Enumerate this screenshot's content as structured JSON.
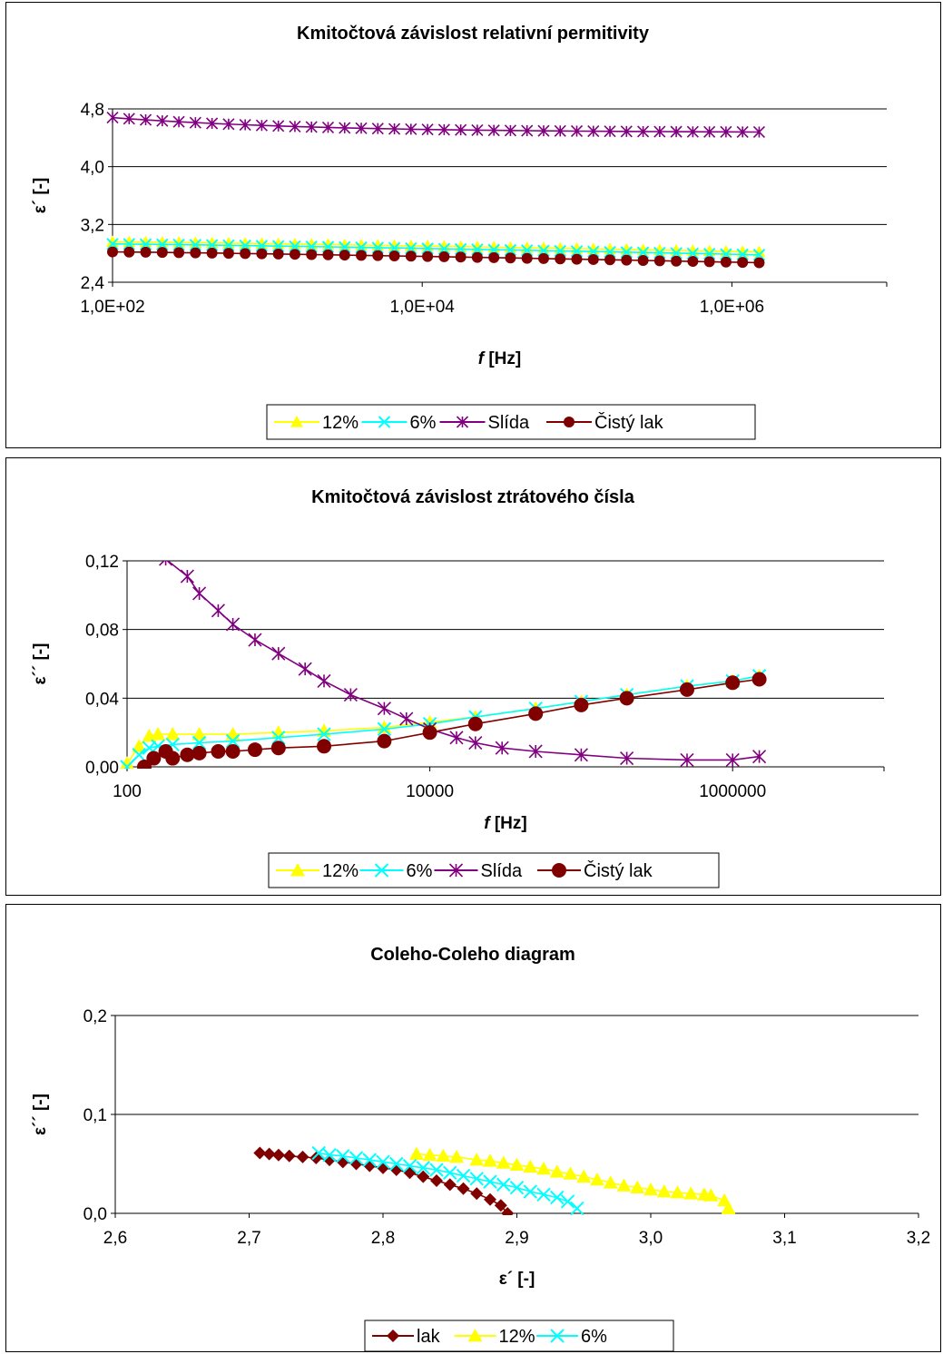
{
  "chart_data": [
    {
      "type": "line",
      "title": "Kmitočtová závislost relativní permitivity",
      "xlabel_italic": "f",
      "xlabel_rest": " [Hz]",
      "ylabel": "ε´ [-]",
      "xscale": "log",
      "xlim": [
        100,
        10000000
      ],
      "ylim": [
        2.4,
        4.8
      ],
      "yticks": [
        2.4,
        3.2,
        4.0,
        4.8
      ],
      "ytick_labels": [
        "2,4",
        "3,2",
        "4,0",
        "4,8"
      ],
      "xticks": [
        100,
        10000,
        1000000
      ],
      "xtick_labels": [
        "1,0E+02",
        "1,0E+04",
        "1,0E+06"
      ],
      "grid": "horizontal",
      "legend_position": "bottom",
      "x": {
        "start": 100,
        "end": 1500000,
        "n": 40
      },
      "series": [
        {
          "name": "12%",
          "color": "#ffff00",
          "marker": "triangle",
          "y_start": 2.96,
          "y_end": 2.82
        },
        {
          "name": "6%",
          "color": "#00ffff",
          "marker": "x",
          "y_start": 2.93,
          "y_end": 2.78
        },
        {
          "name": "Slída",
          "color": "#800080",
          "marker": "star",
          "y_start": 4.68,
          "y_end": 4.48,
          "curve": "decay"
        },
        {
          "name": "Čistý lak",
          "color": "#800000",
          "marker": "circle",
          "y_start": 2.82,
          "y_end": 2.67
        }
      ]
    },
    {
      "type": "line",
      "title": "Kmitočtová závislost ztrátového čísla",
      "xlabel_italic": "f",
      "xlabel_rest": " [Hz]",
      "ylabel": "ε´´ [-]",
      "xscale": "log",
      "xlim": [
        100,
        10000000
      ],
      "ylim": [
        0,
        0.12
      ],
      "yticks": [
        0,
        0.04,
        0.08,
        0.12
      ],
      "ytick_labels": [
        "0,00",
        "0,04",
        "0,08",
        "0,12"
      ],
      "xticks": [
        100,
        10000,
        1000000
      ],
      "xtick_labels": [
        "100",
        "10000",
        "1000000"
      ],
      "grid": "horizontal",
      "legend_position": "bottom",
      "series": [
        {
          "name": "12%",
          "color": "#ffff00",
          "marker": "triangle",
          "points": [
            [
              100,
              0.002
            ],
            [
              120,
              0.012
            ],
            [
              140,
              0.018
            ],
            [
              160,
              0.019
            ],
            [
              200,
              0.019
            ],
            [
              300,
              0.019
            ],
            [
              500,
              0.019
            ],
            [
              1000,
              0.02
            ],
            [
              2000,
              0.021
            ],
            [
              5000,
              0.023
            ],
            [
              10000,
              0.026
            ],
            [
              20000,
              0.029
            ],
            [
              50000,
              0.034
            ],
            [
              100000,
              0.038
            ],
            [
              200000,
              0.042
            ],
            [
              500000,
              0.047
            ],
            [
              1000000,
              0.05
            ],
            [
              1500000,
              0.053
            ]
          ]
        },
        {
          "name": "6%",
          "color": "#00ffff",
          "marker": "x",
          "points": [
            [
              100,
              0.0
            ],
            [
              120,
              0.007
            ],
            [
              140,
              0.011
            ],
            [
              160,
              0.012
            ],
            [
              200,
              0.013
            ],
            [
              300,
              0.014
            ],
            [
              500,
              0.015
            ],
            [
              1000,
              0.017
            ],
            [
              2000,
              0.019
            ],
            [
              5000,
              0.022
            ],
            [
              10000,
              0.025
            ],
            [
              20000,
              0.029
            ],
            [
              50000,
              0.034
            ],
            [
              100000,
              0.038
            ],
            [
              200000,
              0.042
            ],
            [
              500000,
              0.047
            ],
            [
              1000000,
              0.05
            ],
            [
              1500000,
              0.053
            ]
          ]
        },
        {
          "name": "Slída",
          "color": "#800080",
          "marker": "star",
          "points": [
            [
              180,
              0.121
            ],
            [
              250,
              0.111
            ],
            [
              300,
              0.101
            ],
            [
              400,
              0.091
            ],
            [
              500,
              0.083
            ],
            [
              700,
              0.074
            ],
            [
              1000,
              0.066
            ],
            [
              1500,
              0.057
            ],
            [
              2000,
              0.05
            ],
            [
              3000,
              0.042
            ],
            [
              5000,
              0.034
            ],
            [
              7000,
              0.028
            ],
            [
              10000,
              0.022
            ],
            [
              15000,
              0.017
            ],
            [
              20000,
              0.014
            ],
            [
              30000,
              0.011
            ],
            [
              50000,
              0.009
            ],
            [
              100000,
              0.007
            ],
            [
              200000,
              0.005
            ],
            [
              500000,
              0.004
            ],
            [
              1000000,
              0.004
            ],
            [
              1500000,
              0.006
            ]
          ]
        },
        {
          "name": "Čistý lak",
          "color": "#800000",
          "marker": "circle",
          "points": [
            [
              130,
              0.0
            ],
            [
              150,
              0.005
            ],
            [
              180,
              0.009
            ],
            [
              200,
              0.005
            ],
            [
              250,
              0.007
            ],
            [
              300,
              0.008
            ],
            [
              400,
              0.009
            ],
            [
              500,
              0.009
            ],
            [
              700,
              0.01
            ],
            [
              1000,
              0.011
            ],
            [
              2000,
              0.012
            ],
            [
              5000,
              0.015
            ],
            [
              10000,
              0.02
            ],
            [
              20000,
              0.025
            ],
            [
              50000,
              0.031
            ],
            [
              100000,
              0.036
            ],
            [
              200000,
              0.04
            ],
            [
              500000,
              0.045
            ],
            [
              1000000,
              0.049
            ],
            [
              1500000,
              0.051
            ]
          ]
        }
      ]
    },
    {
      "type": "scatter",
      "title": "Coleho-Coleho diagram",
      "xlabel": "ε´ [-]",
      "ylabel": "ε´´ [-]",
      "xlim": [
        2.6,
        3.2
      ],
      "ylim": [
        0,
        0.2
      ],
      "xticks": [
        2.6,
        2.7,
        2.8,
        2.9,
        3.0,
        3.1,
        3.2
      ],
      "xtick_labels": [
        "2,6",
        "2,7",
        "2,8",
        "2,9",
        "3,0",
        "3,1",
        "3,2"
      ],
      "yticks": [
        0,
        0.1,
        0.2
      ],
      "ytick_labels": [
        "0,0",
        "0,1",
        "0,2"
      ],
      "grid": "horizontal",
      "legend_position": "bottom",
      "series": [
        {
          "name": "lak",
          "color": "#800000",
          "marker": "diamond",
          "points": [
            [
              2.708,
              0.061
            ],
            [
              2.715,
              0.06
            ],
            [
              2.722,
              0.059
            ],
            [
              2.73,
              0.058
            ],
            [
              2.74,
              0.057
            ],
            [
              2.75,
              0.056
            ],
            [
              2.76,
              0.054
            ],
            [
              2.77,
              0.052
            ],
            [
              2.78,
              0.05
            ],
            [
              2.79,
              0.048
            ],
            [
              2.8,
              0.046
            ],
            [
              2.81,
              0.044
            ],
            [
              2.82,
              0.041
            ],
            [
              2.83,
              0.037
            ],
            [
              2.84,
              0.033
            ],
            [
              2.85,
              0.029
            ],
            [
              2.86,
              0.025
            ],
            [
              2.87,
              0.02
            ],
            [
              2.88,
              0.014
            ],
            [
              2.888,
              0.008
            ],
            [
              2.893,
              0.0
            ]
          ]
        },
        {
          "name": "12%",
          "color": "#ffff00",
          "marker": "triangle",
          "points": [
            [
              2.825,
              0.06
            ],
            [
              2.835,
              0.059
            ],
            [
              2.845,
              0.058
            ],
            [
              2.855,
              0.057
            ],
            [
              2.87,
              0.054
            ],
            [
              2.88,
              0.053
            ],
            [
              2.89,
              0.051
            ],
            [
              2.9,
              0.049
            ],
            [
              2.91,
              0.047
            ],
            [
              2.92,
              0.045
            ],
            [
              2.93,
              0.042
            ],
            [
              2.94,
              0.04
            ],
            [
              2.95,
              0.037
            ],
            [
              2.96,
              0.034
            ],
            [
              2.97,
              0.031
            ],
            [
              2.98,
              0.028
            ],
            [
              2.99,
              0.026
            ],
            [
              3.0,
              0.024
            ],
            [
              3.01,
              0.022
            ],
            [
              3.02,
              0.021
            ],
            [
              3.03,
              0.02
            ],
            [
              3.04,
              0.019
            ],
            [
              3.045,
              0.018
            ],
            [
              3.055,
              0.013
            ],
            [
              3.058,
              0.005
            ]
          ]
        },
        {
          "name": "6%",
          "color": "#00ffff",
          "marker": "x",
          "points": [
            [
              2.752,
              0.061
            ],
            [
              2.76,
              0.059
            ],
            [
              2.77,
              0.058
            ],
            [
              2.78,
              0.056
            ],
            [
              2.79,
              0.054
            ],
            [
              2.8,
              0.052
            ],
            [
              2.81,
              0.05
            ],
            [
              2.82,
              0.048
            ],
            [
              2.83,
              0.046
            ],
            [
              2.84,
              0.044
            ],
            [
              2.85,
              0.041
            ],
            [
              2.86,
              0.038
            ],
            [
              2.87,
              0.035
            ],
            [
              2.88,
              0.032
            ],
            [
              2.89,
              0.029
            ],
            [
              2.9,
              0.026
            ],
            [
              2.91,
              0.022
            ],
            [
              2.92,
              0.019
            ],
            [
              2.93,
              0.016
            ],
            [
              2.938,
              0.012
            ],
            [
              2.945,
              0.005
            ]
          ]
        }
      ]
    }
  ]
}
